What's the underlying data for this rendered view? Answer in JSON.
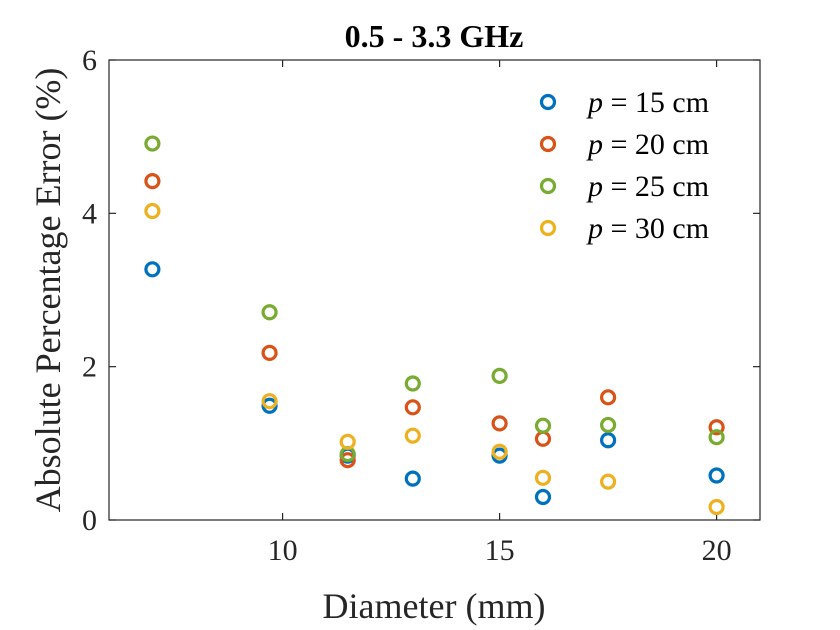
{
  "chart_data": {
    "type": "scatter",
    "title": "0.5 - 3.3 GHz",
    "xlabel": "Diameter (mm)",
    "ylabel": "Absolute Percentage Error (%)",
    "xlim": [
      6,
      21
    ],
    "ylim": [
      0,
      6
    ],
    "xticks": [
      10,
      15,
      20
    ],
    "yticks": [
      0,
      2,
      4,
      6
    ],
    "legend_position": "top-right",
    "series": [
      {
        "name": "p = 15 cm",
        "name_var": "p",
        "name_rest": " = 15 cm",
        "color": "#0072BD",
        "x": [
          7,
          9.7,
          11.5,
          13,
          15,
          16,
          17.5,
          20
        ],
        "y": [
          3.27,
          1.49,
          0.84,
          0.54,
          0.84,
          0.3,
          1.04,
          0.58
        ]
      },
      {
        "name": "p = 20 cm",
        "name_var": "p",
        "name_rest": " = 20 cm",
        "color": "#D95319",
        "x": [
          7,
          9.7,
          11.5,
          13,
          15,
          16,
          17.5,
          20
        ],
        "y": [
          4.42,
          2.18,
          0.78,
          1.47,
          1.26,
          1.06,
          1.6,
          1.21
        ]
      },
      {
        "name": "p = 25 cm",
        "name_var": "p",
        "name_rest": " = 25 cm",
        "color": "#77AC30",
        "x": [
          7,
          9.7,
          11.5,
          13,
          15,
          16,
          17.5,
          20
        ],
        "y": [
          4.91,
          2.71,
          0.86,
          1.78,
          1.88,
          1.23,
          1.24,
          1.08
        ]
      },
      {
        "name": "p = 30 cm",
        "name_var": "p",
        "name_rest": " = 30 cm",
        "color": "#EDB120",
        "x": [
          7,
          9.7,
          11.5,
          13,
          15,
          16,
          17.5,
          20
        ],
        "y": [
          4.03,
          1.55,
          1.02,
          1.1,
          0.89,
          0.55,
          0.5,
          0.17
        ]
      }
    ]
  }
}
